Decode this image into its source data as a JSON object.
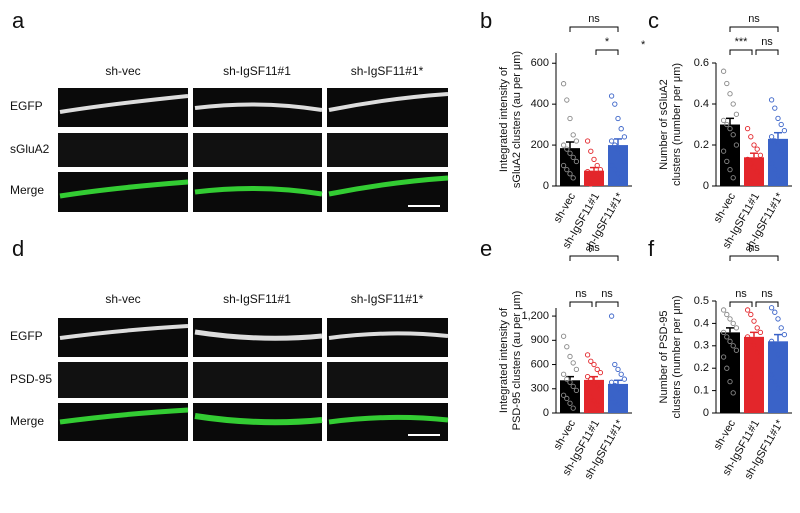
{
  "panels": {
    "letters": [
      "a",
      "b",
      "c",
      "d",
      "e",
      "f"
    ],
    "top": {
      "columns": [
        "sh-vec",
        "sh-IgSF11#1",
        "sh-IgSF11#1*"
      ],
      "rows": [
        "EGFP",
        "sGluA2",
        "Merge"
      ]
    },
    "bottom": {
      "columns": [
        "sh-vec",
        "sh-IgSF11#1",
        "sh-IgSF11#1*"
      ],
      "rows": [
        "EGFP",
        "PSD-95",
        "Merge"
      ]
    },
    "footnote_mark": "*"
  },
  "chart_data": [
    {
      "type": "bar",
      "ylabel": [
        "Integrated intensity of",
        "sGluA2 clusters (au per μm)"
      ],
      "categories": [
        "sh-vec",
        "sh-IgSF11#1",
        "sh-IgSF11#1*"
      ],
      "colors": [
        "#000000",
        "#e3262b",
        "#3a63c8"
      ],
      "values": [
        185,
        75,
        200
      ],
      "errors": [
        30,
        15,
        30
      ],
      "points": [
        [
          500,
          420,
          330,
          250,
          220,
          200,
          180,
          160,
          140,
          120,
          100,
          80,
          60,
          40
        ],
        [
          220,
          170,
          130,
          100,
          80,
          70,
          60,
          50,
          40,
          30,
          20,
          10
        ],
        [
          440,
          400,
          330,
          280,
          240,
          220,
          200,
          180,
          150,
          120,
          100,
          80,
          60,
          40
        ]
      ],
      "ylim": [
        0,
        650
      ],
      "yticks": [
        0,
        200,
        400,
        600
      ],
      "annotations": [
        "ns",
        "*"
      ]
    },
    {
      "type": "bar",
      "ylabel": [
        "Number of sGluA2",
        "clusters (number per μm)"
      ],
      "categories": [
        "sh-vec",
        "sh-IgSF11#1",
        "sh-IgSF11#1*"
      ],
      "colors": [
        "#000000",
        "#e3262b",
        "#3a63c8"
      ],
      "values": [
        0.3,
        0.14,
        0.23
      ],
      "errors": [
        0.03,
        0.02,
        0.03
      ],
      "points": [
        [
          0.56,
          0.5,
          0.45,
          0.4,
          0.35,
          0.32,
          0.3,
          0.28,
          0.25,
          0.2,
          0.17,
          0.12,
          0.08,
          0.04
        ],
        [
          0.28,
          0.24,
          0.2,
          0.18,
          0.15,
          0.13,
          0.11,
          0.09,
          0.07,
          0.05,
          0.03,
          0.02
        ],
        [
          0.42,
          0.38,
          0.33,
          0.3,
          0.27,
          0.24,
          0.22,
          0.2,
          0.17,
          0.14,
          0.11,
          0.08,
          0.05
        ]
      ],
      "ylim": [
        0,
        0.6
      ],
      "yticks": [
        0,
        0.2,
        0.4,
        0.6
      ],
      "annotations": [
        "ns",
        "***",
        "ns"
      ]
    },
    {
      "type": "bar",
      "ylabel": [
        "Integrated intensity of",
        "PSD-95 clusters (au per μm)"
      ],
      "categories": [
        "sh-vec",
        "sh-IgSF11#1",
        "sh-IgSF11#1*"
      ],
      "colors": [
        "#000000",
        "#e3262b",
        "#3a63c8"
      ],
      "values": [
        405,
        410,
        360
      ],
      "errors": [
        45,
        40,
        45
      ],
      "points": [
        [
          950,
          820,
          700,
          620,
          540,
          480,
          420,
          380,
          330,
          280,
          220,
          180,
          120,
          60
        ],
        [
          720,
          640,
          600,
          540,
          500,
          450,
          420,
          380,
          340,
          300,
          250,
          200,
          150,
          100
        ],
        [
          1200,
          600,
          540,
          480,
          420,
          380,
          340,
          300,
          260,
          220,
          180,
          140,
          100
        ]
      ],
      "ylim": [
        0,
        1300
      ],
      "yticks": [
        0,
        300,
        600,
        900,
        {
          "value": 1200,
          "label": "1,200"
        }
      ],
      "annotations": [
        "ns",
        "ns",
        "ns"
      ]
    },
    {
      "type": "bar",
      "ylabel": [
        "Number of PSD-95",
        "clusters (number per μm)"
      ],
      "categories": [
        "sh-vec",
        "sh-IgSF11#1",
        "sh-IgSF11#1*"
      ],
      "colors": [
        "#000000",
        "#e3262b",
        "#3a63c8"
      ],
      "values": [
        0.36,
        0.34,
        0.32
      ],
      "errors": [
        0.02,
        0.02,
        0.03
      ],
      "points": [
        [
          0.46,
          0.44,
          0.42,
          0.4,
          0.38,
          0.36,
          0.34,
          0.32,
          0.3,
          0.28,
          0.25,
          0.2,
          0.14,
          0.09
        ],
        [
          0.46,
          0.44,
          0.41,
          0.38,
          0.36,
          0.34,
          0.32,
          0.3,
          0.27,
          0.24,
          0.2,
          0.16
        ],
        [
          0.47,
          0.45,
          0.42,
          0.38,
          0.35,
          0.32,
          0.29,
          0.26,
          0.23,
          0.2,
          0.17,
          0.14,
          0.11
        ]
      ],
      "ylim": [
        0,
        0.5
      ],
      "yticks": [
        0,
        0.1,
        0.2,
        0.3,
        0.4,
        0.5
      ],
      "annotations": [
        "ns",
        "ns",
        "ns"
      ]
    }
  ]
}
